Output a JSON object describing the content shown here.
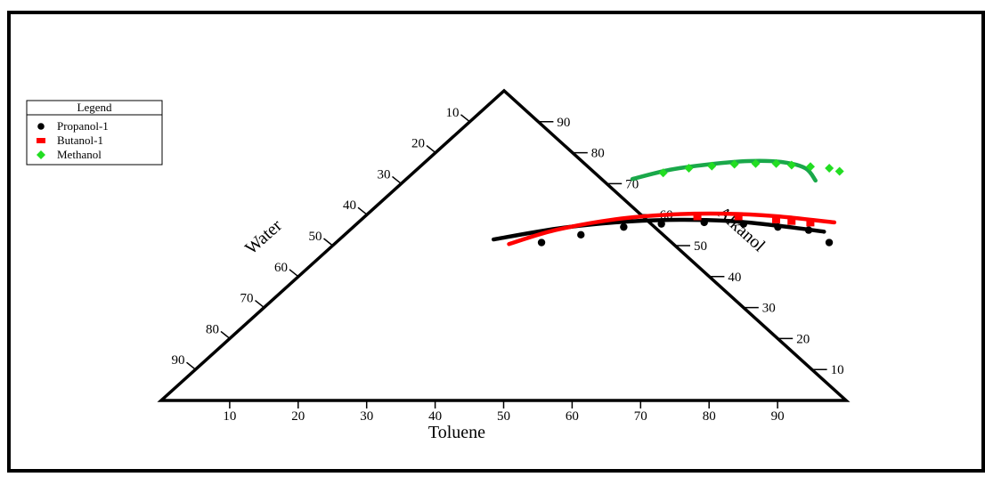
{
  "chart_data": {
    "type": "ternary",
    "axes": {
      "bottom": {
        "label": "Toluene",
        "ticks": [
          10,
          20,
          30,
          40,
          50,
          60,
          70,
          80,
          90
        ]
      },
      "left": {
        "label": "Water",
        "ticks": [
          10,
          20,
          30,
          40,
          50,
          60,
          70,
          80,
          90
        ]
      },
      "right": {
        "label": "Alkanol",
        "ticks": [
          10,
          20,
          30,
          40,
          50,
          60,
          70,
          80,
          90
        ]
      }
    },
    "legend": {
      "title": "Legend",
      "position": "top-left",
      "entries": [
        "Propanol-1",
        "Butanol-1",
        "Methanol"
      ]
    },
    "series": [
      {
        "name": "Propanol-1",
        "color": "#000000",
        "marker": "circle",
        "points": [
          {
            "toluene": 30.0,
            "alkanol": 51.0
          },
          {
            "toluene": 34.5,
            "alkanol": 53.5
          },
          {
            "toluene": 39.5,
            "alkanol": 56.0
          },
          {
            "toluene": 44.5,
            "alkanol": 57.0
          },
          {
            "toluene": 50.5,
            "alkanol": 57.5
          },
          {
            "toluene": 56.5,
            "alkanol": 57.0
          },
          {
            "toluene": 62.0,
            "alkanol": 56.0
          },
          {
            "toluene": 67.0,
            "alkanol": 55.0
          },
          {
            "toluene": 72.0,
            "alkanol": 51.0
          }
        ],
        "curve": [
          {
            "toluene": 22.5,
            "alkanol": 52.0
          },
          {
            "toluene": 30.0,
            "alkanol": 55.5
          },
          {
            "toluene": 37.5,
            "alkanol": 57.5
          },
          {
            "toluene": 45.0,
            "alkanol": 58.3
          },
          {
            "toluene": 53.5,
            "alkanol": 58.0
          },
          {
            "toluene": 61.5,
            "alkanol": 56.5
          },
          {
            "toluene": 69.5,
            "alkanol": 54.5
          }
        ]
      },
      {
        "name": "Butanol-1",
        "color": "#ff0000",
        "marker": "square",
        "points": [
          {
            "toluene": 48.5,
            "alkanol": 59.5
          },
          {
            "toluene": 54.5,
            "alkanol": 59.5
          },
          {
            "toluene": 60.5,
            "alkanol": 58.5
          },
          {
            "toluene": 63.0,
            "alkanol": 58.0
          },
          {
            "toluene": 66.0,
            "alkanol": 57.5
          }
        ],
        "curve": [
          {
            "toluene": 25.5,
            "alkanol": 50.5
          },
          {
            "toluene": 30.0,
            "alkanol": 55.0
          },
          {
            "toluene": 37.0,
            "alkanol": 58.5
          },
          {
            "toluene": 44.0,
            "alkanol": 60.0
          },
          {
            "toluene": 52.0,
            "alkanol": 60.3
          },
          {
            "toluene": 60.0,
            "alkanol": 59.5
          },
          {
            "toluene": 69.5,
            "alkanol": 57.5
          }
        ]
      },
      {
        "name": "Methanol",
        "color": "#22dd22",
        "line_color": "#1aa84a",
        "marker": "diamond",
        "points": [
          {
            "toluene": 36.5,
            "alkanol": 73.5
          },
          {
            "toluene": 39.5,
            "alkanol": 75.0
          },
          {
            "toluene": 42.5,
            "alkanol": 75.7
          },
          {
            "toluene": 45.5,
            "alkanol": 76.3
          },
          {
            "toluene": 48.5,
            "alkanol": 76.5
          },
          {
            "toluene": 51.5,
            "alkanol": 76.5
          },
          {
            "toluene": 54.0,
            "alkanol": 76.0
          },
          {
            "toluene": 57.0,
            "alkanol": 75.5
          },
          {
            "toluene": 60.0,
            "alkanol": 75.0
          },
          {
            "toluene": 62.0,
            "alkanol": 74.0
          }
        ],
        "curve": [
          {
            "toluene": 33.0,
            "alkanol": 71.5
          },
          {
            "toluene": 37.0,
            "alkanol": 74.5
          },
          {
            "toluene": 42.0,
            "alkanol": 76.3
          },
          {
            "toluene": 47.0,
            "alkanol": 77.3
          },
          {
            "toluene": 52.0,
            "alkanol": 77.0
          },
          {
            "toluene": 56.5,
            "alkanol": 75.0
          },
          {
            "toluene": 60.0,
            "alkanol": 71.0
          }
        ]
      }
    ]
  }
}
